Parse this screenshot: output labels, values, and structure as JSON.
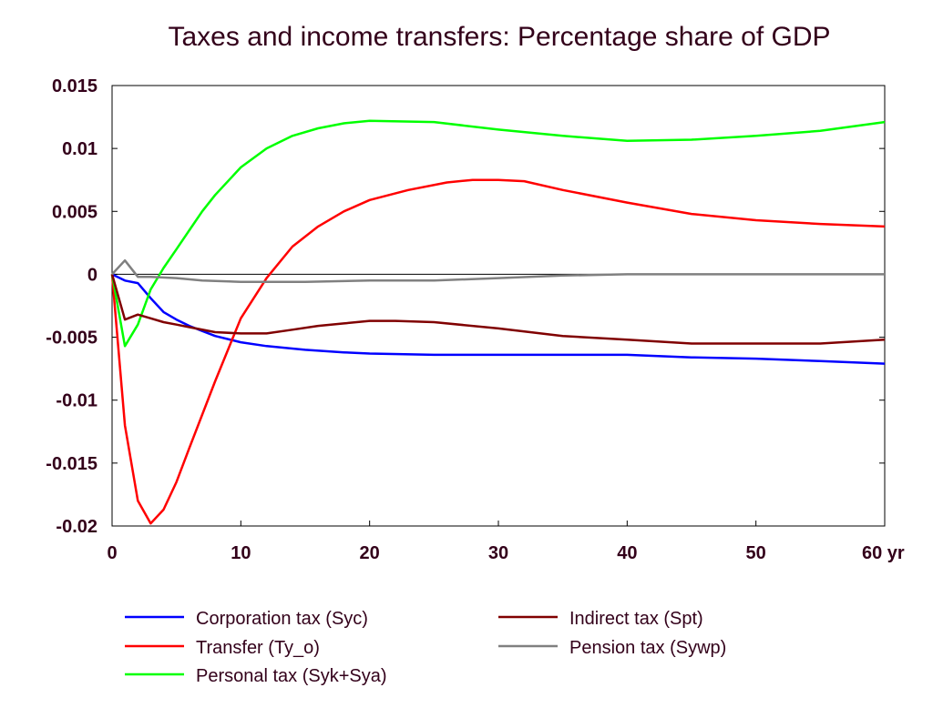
{
  "chart_data": {
    "type": "line",
    "title": "Taxes and income transfers: Percentage share of GDP",
    "xlabel": "",
    "ylabel": "",
    "x_tick_labels": [
      "0",
      "10",
      "20",
      "30",
      "40",
      "50",
      "60 yr"
    ],
    "x_ticks": [
      0,
      10,
      20,
      30,
      40,
      50,
      60
    ],
    "y_tick_labels": [
      "0.015",
      "0.01",
      "0.005",
      "0",
      "-0.005",
      "-0.01",
      "-0.015",
      "-0.02"
    ],
    "y_ticks": [
      0.015,
      0.01,
      0.005,
      0,
      -0.005,
      -0.01,
      -0.015,
      -0.02
    ],
    "xlim": [
      0,
      60
    ],
    "ylim": [
      -0.02,
      0.015
    ],
    "grid": false,
    "zero_line": true,
    "legend_position": "bottom",
    "series": [
      {
        "name": "Corporation tax (Syc)",
        "color": "#0000ff",
        "x": [
          0,
          1,
          2,
          3,
          4,
          5,
          6,
          7,
          8,
          10,
          12,
          15,
          18,
          20,
          25,
          30,
          35,
          40,
          45,
          50,
          55,
          60
        ],
        "y": [
          0,
          -0.0005,
          -0.0007,
          -0.0019,
          -0.003,
          -0.0036,
          -0.0041,
          -0.0045,
          -0.0049,
          -0.0054,
          -0.0057,
          -0.006,
          -0.0062,
          -0.0063,
          -0.0064,
          -0.0064,
          -0.0064,
          -0.0064,
          -0.0066,
          -0.0067,
          -0.0069,
          -0.0071
        ]
      },
      {
        "name": "Transfer (Ty_o)",
        "color": "#ff0000",
        "x": [
          0,
          1,
          2,
          3,
          4,
          5,
          6,
          8,
          10,
          12,
          14,
          16,
          18,
          20,
          23,
          26,
          28,
          30,
          32,
          35,
          40,
          45,
          50,
          55,
          60
        ],
        "y": [
          0,
          -0.012,
          -0.018,
          -0.0198,
          -0.0187,
          -0.0165,
          -0.0138,
          -0.0085,
          -0.0035,
          -0.0003,
          0.0022,
          0.0038,
          0.005,
          0.0059,
          0.0067,
          0.0073,
          0.0075,
          0.0075,
          0.0074,
          0.0067,
          0.0057,
          0.0048,
          0.0043,
          0.004,
          0.0038
        ]
      },
      {
        "name": "Personal tax (Syk+Sya)",
        "color": "#00ff00",
        "x": [
          0,
          1,
          2,
          3,
          4,
          5,
          6,
          7,
          8,
          10,
          12,
          14,
          16,
          18,
          20,
          25,
          30,
          35,
          40,
          45,
          50,
          55,
          60
        ],
        "y": [
          0,
          -0.0057,
          -0.004,
          -0.0012,
          0.0005,
          0.002,
          0.0035,
          0.005,
          0.0063,
          0.0085,
          0.01,
          0.011,
          0.0116,
          0.012,
          0.0122,
          0.0121,
          0.0115,
          0.011,
          0.0106,
          0.0107,
          0.011,
          0.0114,
          0.0121
        ]
      },
      {
        "name": "Indirect tax (Spt)",
        "color": "#800000",
        "x": [
          0,
          1,
          2,
          3,
          4,
          5,
          6,
          8,
          10,
          12,
          14,
          16,
          18,
          20,
          22,
          25,
          30,
          35,
          40,
          45,
          50,
          55,
          60
        ],
        "y": [
          0,
          -0.0036,
          -0.0032,
          -0.0035,
          -0.0038,
          -0.004,
          -0.0042,
          -0.0046,
          -0.0047,
          -0.0047,
          -0.0044,
          -0.0041,
          -0.0039,
          -0.0037,
          -0.0037,
          -0.0038,
          -0.0043,
          -0.0049,
          -0.0052,
          -0.0055,
          -0.0055,
          -0.0055,
          -0.0052
        ]
      },
      {
        "name": "Pension tax (Sywp)",
        "color": "#808080",
        "x": [
          0,
          1,
          2,
          3,
          5,
          7,
          10,
          15,
          20,
          25,
          30,
          35,
          40,
          45,
          50,
          55,
          60
        ],
        "y": [
          0,
          0.0011,
          -0.0002,
          -0.0002,
          -0.0003,
          -0.0005,
          -0.0006,
          -0.0006,
          -0.0005,
          -0.0005,
          -0.0003,
          -0.0001,
          0,
          0,
          0,
          0,
          0
        ]
      }
    ]
  }
}
